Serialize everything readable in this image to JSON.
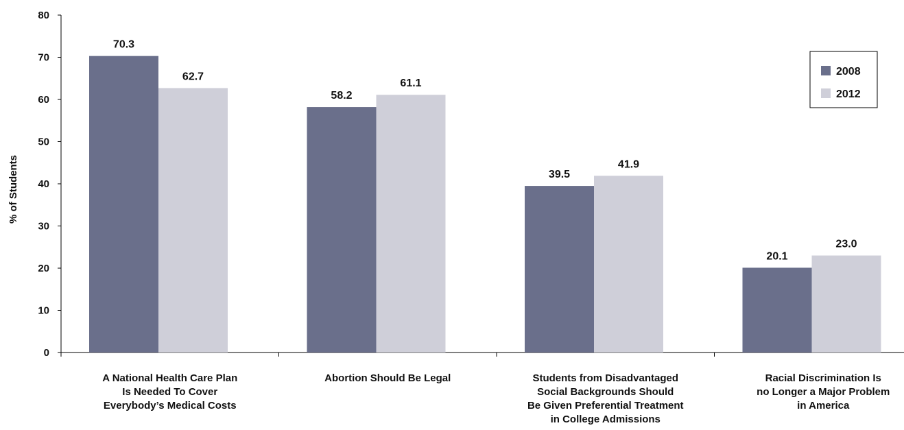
{
  "chart_data": {
    "type": "bar",
    "ylabel": "% of Students",
    "ylim": [
      0,
      80
    ],
    "yticks": [
      0,
      10,
      20,
      30,
      40,
      50,
      60,
      70,
      80
    ],
    "grid": false,
    "legend_position": "top-right",
    "categories": [
      [
        "A National Health Care Plan",
        "Is Needed To Cover",
        "Everybody’s Medical Costs"
      ],
      [
        "Abortion Should Be Legal"
      ],
      [
        "Students from Disadvantaged",
        "Social Backgrounds Should",
        "Be Given Preferential Treatment",
        "in College Admissions"
      ],
      [
        "Racial Discrimination Is",
        "no Longer a Major Problem",
        "in America"
      ]
    ],
    "series": [
      {
        "name": "2008",
        "color": "#6a6f8b",
        "values": [
          70.3,
          58.2,
          39.5,
          20.1
        ],
        "labels": [
          "70.3",
          "58.2",
          "39.5",
          "20.1"
        ]
      },
      {
        "name": "2012",
        "color": "#cfcfd9",
        "values": [
          62.7,
          61.1,
          41.9,
          23.0
        ],
        "labels": [
          "62.7",
          "61.1",
          "41.9",
          "23.0"
        ]
      }
    ]
  }
}
